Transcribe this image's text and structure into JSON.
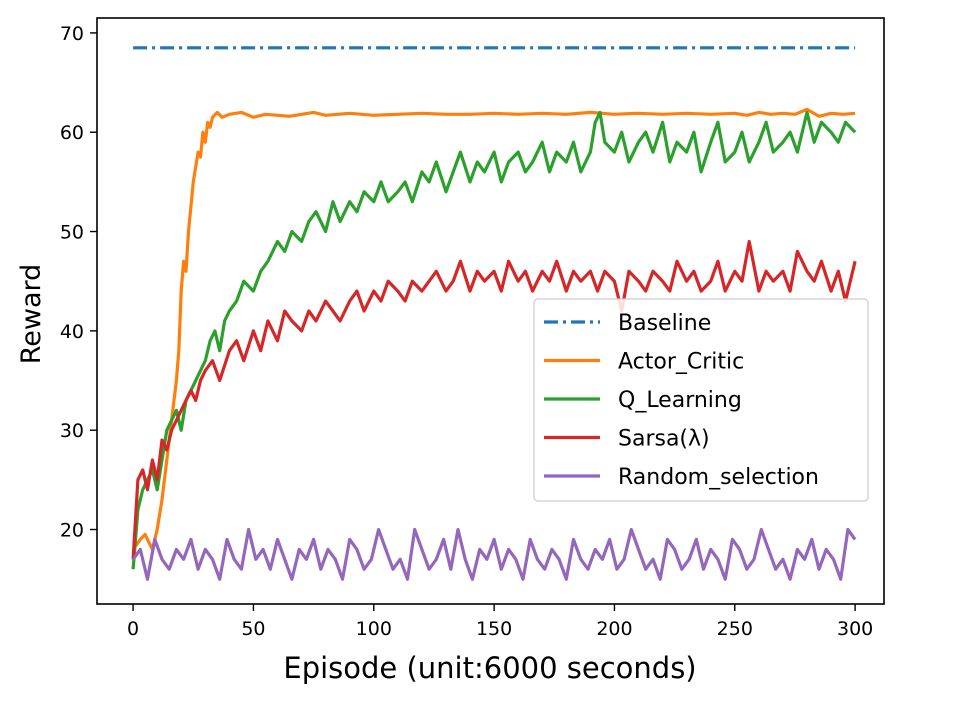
{
  "chart_data": {
    "type": "line",
    "title": "",
    "xlabel": "Episode (unit:6000 seconds)",
    "ylabel": "Reward",
    "xlim": [
      -15,
      312
    ],
    "ylim": [
      12.5,
      71.5
    ],
    "xticks": [
      0,
      50,
      100,
      150,
      200,
      250,
      300
    ],
    "yticks": [
      20,
      30,
      40,
      50,
      60,
      70
    ],
    "grid": false,
    "legend_position": "center-right",
    "series": [
      {
        "name": "Baseline",
        "color": "#1f77b4",
        "style": "dashdot",
        "x": [
          0,
          300
        ],
        "y": [
          68.5,
          68.5
        ]
      },
      {
        "name": "Actor_Critic",
        "color": "#ff7f0e",
        "style": "solid",
        "x": [
          0,
          3,
          5,
          8,
          10,
          12,
          14,
          16,
          18,
          19,
          20,
          21,
          22,
          23,
          25,
          27,
          28,
          29,
          30,
          31,
          32,
          33,
          35,
          37,
          40,
          45,
          50,
          55,
          60,
          65,
          70,
          75,
          80,
          85,
          90,
          95,
          100,
          110,
          120,
          130,
          140,
          150,
          160,
          170,
          180,
          190,
          200,
          210,
          220,
          230,
          240,
          250,
          255,
          260,
          265,
          270,
          275,
          280,
          285,
          290,
          295,
          300
        ],
        "y": [
          18,
          19,
          19.5,
          18,
          20,
          23,
          27,
          31,
          35,
          38,
          44,
          47,
          46,
          50,
          55,
          58,
          57.5,
          60,
          59,
          61,
          60.5,
          61.5,
          62,
          61.5,
          61.8,
          62,
          61.5,
          61.8,
          61.7,
          61.6,
          61.8,
          62,
          61.7,
          61.8,
          61.9,
          61.8,
          61.7,
          61.8,
          61.9,
          61.8,
          61.8,
          61.9,
          61.8,
          61.9,
          61.8,
          62,
          61.8,
          61.9,
          61.8,
          61.9,
          61.8,
          61.9,
          61.7,
          62,
          61.8,
          61.9,
          61.8,
          62.3,
          61.6,
          61.9,
          61.8,
          61.9
        ]
      },
      {
        "name": "Q_Learning",
        "color": "#2ca02c",
        "style": "solid",
        "x": [
          0,
          2,
          4,
          6,
          8,
          10,
          12,
          14,
          16,
          18,
          20,
          22,
          24,
          26,
          28,
          30,
          32,
          34,
          36,
          38,
          40,
          43,
          46,
          50,
          53,
          56,
          60,
          63,
          66,
          70,
          73,
          76,
          80,
          83,
          86,
          90,
          93,
          96,
          100,
          103,
          106,
          110,
          113,
          116,
          120,
          123,
          126,
          130,
          133,
          136,
          140,
          143,
          146,
          150,
          153,
          156,
          160,
          163,
          166,
          170,
          173,
          176,
          180,
          183,
          186,
          190,
          192,
          194,
          196,
          200,
          203,
          206,
          210,
          213,
          216,
          220,
          223,
          226,
          230,
          233,
          236,
          240,
          243,
          246,
          250,
          253,
          256,
          260,
          263,
          266,
          270,
          273,
          276,
          280,
          283,
          286,
          290,
          293,
          296,
          300
        ],
        "y": [
          16,
          22,
          24,
          25,
          26,
          24,
          27,
          30,
          31,
          32,
          30,
          33,
          34,
          35,
          36,
          37,
          39,
          40,
          38,
          41,
          42,
          43,
          45,
          44,
          46,
          47,
          49,
          48,
          50,
          49,
          51,
          52,
          50,
          53,
          51,
          53,
          52,
          54,
          53,
          55,
          53,
          54,
          55,
          53,
          56,
          55,
          57,
          54,
          56,
          58,
          55,
          57,
          56,
          58,
          55,
          57,
          58,
          56,
          57,
          59,
          56,
          58,
          57,
          59,
          56,
          58,
          61,
          62,
          59,
          58,
          60,
          57,
          59,
          60,
          58,
          61,
          57,
          59,
          58,
          60,
          56,
          59,
          61,
          57,
          58,
          60,
          57,
          59,
          61,
          58,
          59,
          60,
          58,
          62,
          59,
          61,
          60,
          59,
          61,
          60
        ]
      },
      {
        "name": "Sarsa(λ)",
        "color": "#d62728",
        "style": "solid",
        "x": [
          0,
          2,
          4,
          6,
          8,
          10,
          12,
          14,
          16,
          18,
          20,
          22,
          24,
          26,
          28,
          30,
          33,
          36,
          40,
          43,
          46,
          50,
          53,
          56,
          60,
          63,
          66,
          70,
          73,
          76,
          80,
          83,
          86,
          90,
          93,
          96,
          100,
          103,
          106,
          110,
          113,
          116,
          120,
          123,
          126,
          130,
          133,
          136,
          140,
          143,
          146,
          150,
          153,
          156,
          160,
          163,
          166,
          170,
          173,
          176,
          180,
          183,
          186,
          190,
          193,
          196,
          200,
          203,
          206,
          210,
          213,
          216,
          220,
          223,
          226,
          230,
          233,
          236,
          240,
          243,
          246,
          250,
          253,
          256,
          260,
          263,
          266,
          270,
          273,
          276,
          280,
          283,
          286,
          290,
          293,
          296,
          300
        ],
        "y": [
          17,
          25,
          26,
          24,
          27,
          25,
          29,
          28,
          30,
          31,
          32,
          33,
          34,
          33,
          35,
          36,
          37,
          35,
          38,
          39,
          37,
          40,
          38,
          41,
          39,
          42,
          41,
          40,
          42,
          41,
          43,
          42,
          41,
          43,
          44,
          42,
          44,
          43,
          45,
          44,
          43,
          45,
          44,
          45,
          46,
          44,
          45,
          47,
          44,
          46,
          45,
          46,
          44,
          47,
          45,
          46,
          44,
          46,
          45,
          47,
          44,
          46,
          45,
          46,
          44,
          46,
          45,
          42,
          46,
          45,
          44,
          46,
          45,
          44,
          47,
          45,
          46,
          44,
          45,
          47,
          44,
          46,
          45,
          49,
          44,
          46,
          45,
          46,
          44,
          48,
          46,
          45,
          47,
          44,
          46,
          43,
          47
        ]
      },
      {
        "name": "Random_selection",
        "color": "#9467bd",
        "style": "solid",
        "x": [
          0,
          3,
          6,
          9,
          12,
          15,
          18,
          21,
          24,
          27,
          30,
          33,
          36,
          39,
          42,
          45,
          48,
          51,
          54,
          57,
          60,
          63,
          66,
          69,
          72,
          75,
          78,
          81,
          84,
          87,
          90,
          93,
          96,
          99,
          102,
          105,
          108,
          111,
          114,
          117,
          120,
          123,
          126,
          129,
          132,
          135,
          138,
          141,
          144,
          147,
          150,
          153,
          156,
          159,
          162,
          165,
          168,
          171,
          174,
          177,
          180,
          183,
          186,
          189,
          192,
          195,
          198,
          201,
          204,
          207,
          210,
          213,
          216,
          219,
          222,
          225,
          228,
          231,
          234,
          237,
          240,
          243,
          246,
          249,
          252,
          255,
          258,
          261,
          264,
          267,
          270,
          273,
          276,
          279,
          282,
          285,
          288,
          291,
          294,
          297,
          300
        ],
        "y": [
          17,
          18,
          15,
          19,
          17,
          16,
          18,
          17,
          19,
          16,
          18,
          17,
          15,
          19,
          17,
          16,
          20,
          17,
          18,
          16,
          19,
          17,
          15,
          18,
          17,
          19,
          16,
          18,
          17,
          15,
          19,
          18,
          16,
          17,
          20,
          18,
          16,
          17,
          15,
          20,
          18,
          16,
          17,
          19,
          16,
          20,
          17,
          15,
          18,
          17,
          19,
          16,
          18,
          17,
          15,
          19,
          17,
          16,
          18,
          17,
          15,
          19,
          17,
          16,
          18,
          17,
          19,
          16,
          17,
          20,
          18,
          16,
          17,
          15,
          19,
          18,
          16,
          17,
          19,
          16,
          18,
          17,
          15,
          19,
          18,
          16,
          17,
          20,
          18,
          16,
          17,
          15,
          18,
          17,
          19,
          16,
          18,
          17,
          15,
          20,
          19
        ]
      }
    ]
  }
}
